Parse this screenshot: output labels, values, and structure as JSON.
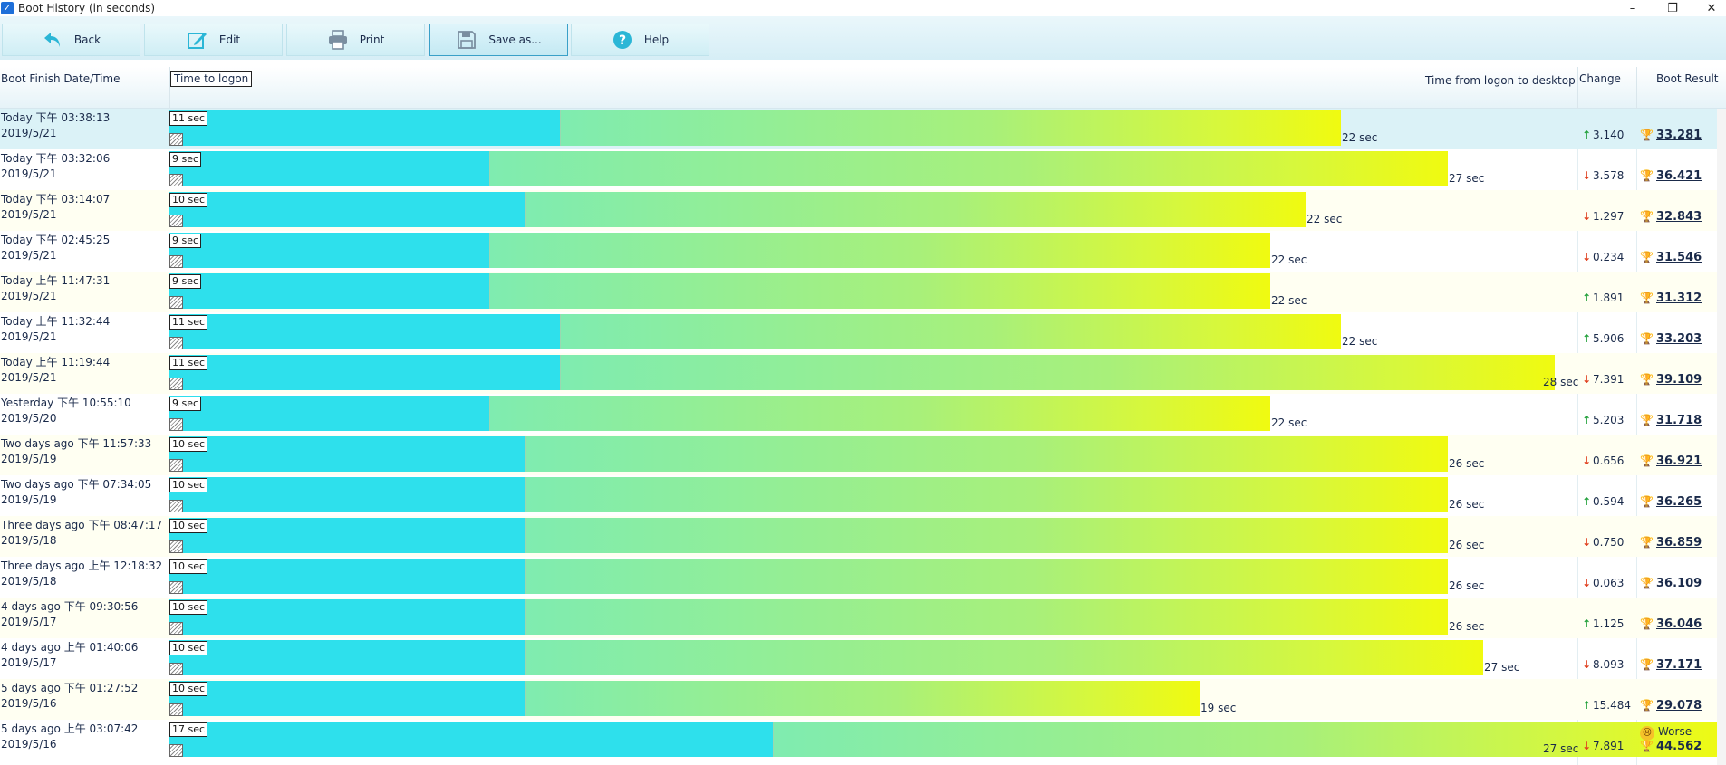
{
  "window": {
    "title": "Boot History (in seconds)",
    "minimize": "–",
    "maximize": "❐",
    "close": "✕"
  },
  "toolbar": {
    "back": "Back",
    "edit": "Edit",
    "print": "Print",
    "save": "Save as...",
    "help": "Help"
  },
  "columns": {
    "date": "Boot Finish Date/Time",
    "logon": "Time to logon",
    "desktop": "Time from logon to desktop",
    "change": "Change",
    "result": "Boot Result"
  },
  "colors": {
    "logon_bar": "#2ee0ec",
    "desktop_bar_start": "#7fecb0",
    "desktop_bar_end": "#f0fa10",
    "up": "#21a03a",
    "down": "#e0401f"
  },
  "rows": [
    {
      "when": "Today  下午 03:38:13",
      "date": "2019/5/21",
      "logon": "11 sec",
      "desktop": "22 sec",
      "dir": "up",
      "change": "3.140",
      "result": "33.281"
    },
    {
      "when": "Today  下午 03:32:06",
      "date": "2019/5/21",
      "logon": "9 sec",
      "desktop": "27 sec",
      "dir": "down",
      "change": "3.578",
      "result": "36.421"
    },
    {
      "when": "Today  下午 03:14:07",
      "date": "2019/5/21",
      "logon": "10 sec",
      "desktop": "22 sec",
      "dir": "down",
      "change": "1.297",
      "result": "32.843"
    },
    {
      "when": "Today  下午 02:45:25",
      "date": "2019/5/21",
      "logon": "9 sec",
      "desktop": "22 sec",
      "dir": "down",
      "change": "0.234",
      "result": "31.546"
    },
    {
      "when": "Today  上午 11:47:31",
      "date": "2019/5/21",
      "logon": "9 sec",
      "desktop": "22 sec",
      "dir": "up",
      "change": "1.891",
      "result": "31.312"
    },
    {
      "when": "Today  上午 11:32:44",
      "date": "2019/5/21",
      "logon": "11 sec",
      "desktop": "22 sec",
      "dir": "up",
      "change": "5.906",
      "result": "33.203"
    },
    {
      "when": "Today  上午 11:19:44",
      "date": "2019/5/21",
      "logon": "11 sec",
      "desktop": "28 sec",
      "dir": "down",
      "change": "7.391",
      "result": "39.109"
    },
    {
      "when": "Yesterday  下午 10:55:10",
      "date": "2019/5/20",
      "logon": "9 sec",
      "desktop": "22 sec",
      "dir": "up",
      "change": "5.203",
      "result": "31.718"
    },
    {
      "when": "Two days ago  下午 11:57:33",
      "date": "2019/5/19",
      "logon": "10 sec",
      "desktop": "26 sec",
      "dir": "down",
      "change": "0.656",
      "result": "36.921"
    },
    {
      "when": "Two days ago  下午 07:34:05",
      "date": "2019/5/19",
      "logon": "10 sec",
      "desktop": "26 sec",
      "dir": "up",
      "change": "0.594",
      "result": "36.265"
    },
    {
      "when": "Three days ago  下午 08:47:17",
      "date": "2019/5/18",
      "logon": "10 sec",
      "desktop": "26 sec",
      "dir": "down",
      "change": "0.750",
      "result": "36.859"
    },
    {
      "when": "Three days ago  上午 12:18:32",
      "date": "2019/5/18",
      "logon": "10 sec",
      "desktop": "26 sec",
      "dir": "down",
      "change": "0.063",
      "result": "36.109"
    },
    {
      "when": "4 days ago  下午 09:30:56",
      "date": "2019/5/17",
      "logon": "10 sec",
      "desktop": "26 sec",
      "dir": "up",
      "change": "1.125",
      "result": "36.046"
    },
    {
      "when": "4 days ago  上午 01:40:06",
      "date": "2019/5/17",
      "logon": "10 sec",
      "desktop": "27 sec",
      "dir": "down",
      "change": "8.093",
      "result": "37.171"
    },
    {
      "when": "5 days ago  下午 01:27:52",
      "date": "2019/5/16",
      "logon": "10 sec",
      "desktop": "19 sec",
      "dir": "up",
      "change": "15.484",
      "result": "29.078"
    },
    {
      "when": "5 days ago  上午 03:07:42",
      "date": "2019/5/16",
      "logon": "17 sec",
      "desktop": "27 sec",
      "dir": "down",
      "change": "7.891",
      "result": "44.562",
      "note": "Worse"
    }
  ]
}
